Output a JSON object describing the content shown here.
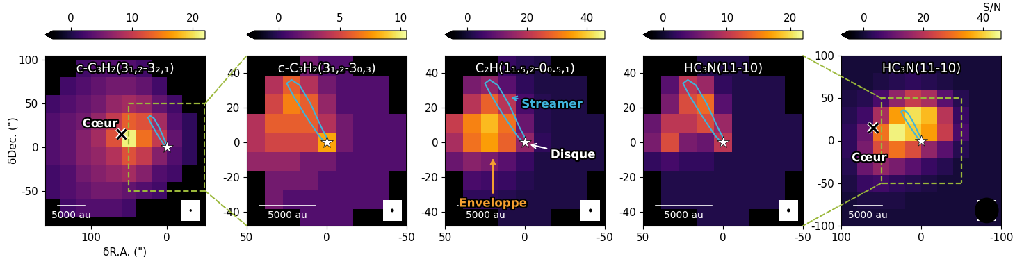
{
  "chart_data": [
    {
      "type": "heatmap",
      "title": "c-C₃H₂(3₁,₂-3₂,₁)",
      "xlabel": "δR.A. (\")",
      "ylabel": "δDec. (\")",
      "xlim": [
        160,
        -50
      ],
      "ylim": [
        -90,
        105
      ],
      "xticks": [
        100,
        0
      ],
      "yticks": [
        -50,
        0,
        50,
        100
      ],
      "x": [
        150,
        130,
        110,
        90,
        70,
        50,
        30,
        10,
        -10,
        -30
      ],
      "y": [
        90,
        70,
        50,
        30,
        10,
        -10,
        -30,
        -50,
        -70
      ],
      "cells": [
        [
          null,
          null,
          2,
          3,
          3,
          3,
          2,
          null,
          null,
          null
        ],
        [
          null,
          2,
          3,
          4,
          5,
          5,
          4,
          2,
          null,
          null
        ],
        [
          2,
          3,
          4,
          5,
          7,
          8,
          7,
          4,
          2,
          null
        ],
        [
          3,
          4,
          5,
          7,
          10,
          13,
          12,
          8,
          3,
          1
        ],
        [
          3,
          4,
          6,
          8,
          12,
          21,
          14,
          10,
          4,
          1
        ],
        [
          3,
          4,
          6,
          7,
          9,
          12,
          10,
          6,
          3,
          1
        ],
        [
          2,
          3,
          5,
          6,
          7,
          8,
          6,
          3,
          2,
          null
        ],
        [
          2,
          3,
          4,
          5,
          5,
          4,
          3,
          2,
          null,
          null
        ],
        [
          null,
          2,
          3,
          3,
          3,
          2,
          null,
          null,
          null,
          null
        ]
      ],
      "colorbar": {
        "range": [
          -3,
          22
        ],
        "ticks": [
          0,
          10,
          20
        ]
      },
      "star": [
        0,
        0
      ],
      "cross": [
        60,
        15
      ],
      "streamer": {
        "x": [
          1,
          5,
          13,
          21,
          25,
          22,
          17,
          10,
          3,
          -1,
          1
        ],
        "y": [
          0,
          4,
          15,
          27,
          34,
          36,
          33,
          22,
          8,
          1,
          0
        ],
        "color": "#3fb4dc"
      },
      "zoom_box": {
        "x": [
          50,
          -50
        ],
        "y": [
          -50,
          50
        ]
      },
      "scalebar": {
        "label": "5000 au",
        "length": 35
      },
      "beam": 3,
      "annotations": [
        {
          "text": "Cœur",
          "x": 88,
          "y": 27,
          "color": "#ffffff"
        }
      ]
    },
    {
      "type": "heatmap",
      "title": "c-C₃H₂(3₁,₂-3₀,₃)",
      "xlim": [
        50,
        -50
      ],
      "ylim": [
        -48,
        50
      ],
      "xticks": [
        50,
        0,
        -50
      ],
      "yticks": [
        -40,
        -20,
        0,
        20,
        40
      ],
      "x": [
        44,
        33,
        22,
        11,
        0,
        -11,
        -22,
        -33,
        -44
      ],
      "y": [
        44,
        33,
        22,
        11,
        0,
        -11,
        -22,
        -33,
        -44
      ],
      "cells": [
        [
          null,
          null,
          null,
          2,
          1,
          1,
          null,
          null,
          null
        ],
        [
          null,
          4,
          6,
          4,
          2,
          1,
          1,
          1,
          null
        ],
        [
          null,
          5,
          7,
          6,
          3,
          1,
          1,
          1,
          null
        ],
        [
          4,
          6,
          6,
          6,
          4,
          2,
          1,
          1,
          1
        ],
        [
          4,
          5,
          5,
          5,
          8,
          2,
          1,
          1,
          1
        ],
        [
          3,
          3,
          3,
          2,
          2,
          1,
          1,
          1,
          1
        ],
        [
          null,
          2,
          2,
          2,
          1,
          1,
          1,
          1,
          null
        ],
        [
          null,
          2,
          1,
          1,
          1,
          1,
          1,
          1,
          null
        ],
        [
          null,
          null,
          null,
          1,
          1,
          1,
          null,
          null,
          null
        ]
      ],
      "colorbar": {
        "range": [
          -2,
          10.5
        ],
        "ticks": [
          0,
          5,
          10
        ]
      },
      "star": [
        0,
        0
      ],
      "streamer": {
        "x": [
          1,
          5,
          13,
          21,
          25,
          22,
          17,
          10,
          3,
          -1,
          1
        ],
        "y": [
          0,
          4,
          15,
          27,
          34,
          36,
          33,
          22,
          8,
          1,
          0
        ],
        "color": "#3fb4dc"
      },
      "scalebar": {
        "label": "5000 au",
        "length": 35
      },
      "beam": 2
    },
    {
      "type": "heatmap",
      "title": "C₂H(1₁.₅,₂-0₀.₅,₁)",
      "xlim": [
        50,
        -50
      ],
      "ylim": [
        -48,
        50
      ],
      "xticks": [
        50,
        0,
        -50
      ],
      "yticks": [
        -40,
        -20,
        0,
        20,
        40
      ],
      "x": [
        44,
        33,
        22,
        11,
        0,
        -11,
        -22,
        -33,
        -44
      ],
      "y": [
        44,
        33,
        22,
        11,
        0,
        -11,
        -22,
        -33,
        -44
      ],
      "cells": [
        [
          null,
          null,
          null,
          4,
          2,
          1,
          null,
          null,
          null
        ],
        [
          null,
          12,
          15,
          8,
          3,
          1,
          1,
          1,
          null
        ],
        [
          null,
          20,
          28,
          20,
          6,
          2,
          1,
          1,
          null
        ],
        [
          22,
          32,
          38,
          30,
          10,
          2,
          1,
          1,
          1
        ],
        [
          18,
          30,
          35,
          28,
          15,
          3,
          1,
          1,
          1
        ],
        [
          10,
          14,
          12,
          8,
          4,
          1,
          1,
          1,
          1
        ],
        [
          null,
          6,
          5,
          4,
          2,
          1,
          1,
          1,
          null
        ],
        [
          null,
          3,
          3,
          2,
          1,
          1,
          1,
          1,
          null
        ],
        [
          null,
          null,
          null,
          1,
          1,
          1,
          null,
          null,
          null
        ]
      ],
      "colorbar": {
        "range": [
          -5,
          46
        ],
        "ticks": [
          0,
          20,
          40
        ]
      },
      "star": [
        0,
        0
      ],
      "streamer": {
        "x": [
          1,
          5,
          13,
          21,
          25,
          22,
          17,
          10,
          3,
          -1,
          1
        ],
        "y": [
          0,
          4,
          15,
          27,
          34,
          36,
          33,
          22,
          8,
          1,
          0
        ],
        "color": "#3fb4dc"
      },
      "scalebar": {
        "label": "5000 au",
        "length": 35
      },
      "beam": 2,
      "annotations": [
        {
          "text": "Streamer",
          "x": -17,
          "y": 22,
          "arrow_x": 10,
          "arrow_y": 26,
          "color": "#3fb4dc"
        },
        {
          "text": "Enveloppe",
          "x": 20,
          "y": -35,
          "arrow_x": 20,
          "arrow_y": -8,
          "color": "#f5a030"
        },
        {
          "text": "Disque",
          "x": -30,
          "y": -7,
          "arrow_x": -2,
          "arrow_y": -1,
          "color": "#ffffff"
        }
      ]
    },
    {
      "type": "heatmap",
      "title": "HC₃N(11-10)",
      "xlim": [
        50,
        -50
      ],
      "ylim": [
        -48,
        50
      ],
      "xticks": [
        50,
        0,
        -50
      ],
      "yticks": [
        -40,
        -20,
        0,
        20,
        40
      ],
      "x": [
        44,
        33,
        22,
        11,
        0,
        -11,
        -22,
        -33,
        -44
      ],
      "y": [
        44,
        33,
        22,
        11,
        0,
        -11,
        -22,
        -33,
        -44
      ],
      "cells": [
        [
          null,
          null,
          null,
          1,
          1,
          1,
          null,
          null,
          null
        ],
        [
          null,
          4,
          10,
          8,
          2,
          1,
          1,
          1,
          null
        ],
        [
          null,
          6,
          12,
          14,
          4,
          1,
          1,
          1,
          null
        ],
        [
          5,
          10,
          10,
          12,
          8,
          1,
          1,
          1,
          1
        ],
        [
          6,
          12,
          6,
          5,
          10,
          1,
          1,
          1,
          1
        ],
        [
          2,
          3,
          2,
          2,
          1,
          1,
          1,
          1,
          1
        ],
        [
          null,
          1,
          1,
          1,
          1,
          1,
          1,
          1,
          null
        ],
        [
          null,
          1,
          1,
          1,
          1,
          1,
          1,
          1,
          null
        ],
        [
          null,
          null,
          null,
          1,
          1,
          1,
          null,
          null,
          null
        ]
      ],
      "colorbar": {
        "range": [
          -2,
          22
        ],
        "ticks": [
          0,
          10,
          20
        ]
      },
      "star": [
        0,
        0
      ],
      "streamer": {
        "x": [
          1,
          5,
          13,
          21,
          25,
          22,
          17,
          10,
          3,
          -1,
          1
        ],
        "y": [
          0,
          4,
          15,
          27,
          34,
          36,
          33,
          22,
          8,
          1,
          0
        ],
        "color": "#3fb4dc"
      },
      "scalebar": {
        "label": "5000 au",
        "length": 35
      },
      "beam": 2
    },
    {
      "type": "heatmap",
      "title": "HC₃N(11-10)",
      "xlim": [
        100,
        -100
      ],
      "ylim": [
        -100,
        100
      ],
      "xticks": [
        100,
        0,
        -100
      ],
      "yticks": [
        -100,
        -50,
        0,
        50,
        100
      ],
      "x": [
        90,
        70,
        50,
        30,
        10,
        -10,
        -30,
        -50,
        -70,
        -90
      ],
      "y": [
        90,
        70,
        50,
        30,
        10,
        -10,
        -30,
        -50,
        -70,
        -90
      ],
      "cells": [
        [
          0,
          0,
          0,
          0,
          0,
          0,
          0,
          0,
          0,
          0
        ],
        [
          0,
          0,
          1,
          2,
          3,
          2,
          1,
          0,
          0,
          0
        ],
        [
          1,
          2,
          6,
          15,
          22,
          18,
          8,
          2,
          0,
          0
        ],
        [
          2,
          5,
          18,
          35,
          42,
          38,
          20,
          4,
          0,
          0
        ],
        [
          3,
          10,
          30,
          44,
          40,
          35,
          22,
          6,
          0,
          0
        ],
        [
          3,
          12,
          25,
          30,
          25,
          15,
          8,
          2,
          0,
          0
        ],
        [
          2,
          10,
          15,
          12,
          8,
          4,
          2,
          0,
          0,
          0
        ],
        [
          1,
          4,
          5,
          3,
          2,
          1,
          0,
          0,
          0,
          0
        ],
        [
          0,
          1,
          1,
          1,
          0,
          0,
          0,
          0,
          0,
          0
        ],
        [
          0,
          0,
          0,
          0,
          0,
          0,
          0,
          0,
          0,
          0
        ]
      ],
      "colorbar": {
        "range": [
          -5,
          46
        ],
        "ticks": [
          0,
          20,
          40
        ],
        "label": "S/N"
      },
      "star": [
        0,
        0
      ],
      "cross": [
        60,
        15
      ],
      "streamer": {
        "x": [
          1,
          5,
          13,
          21,
          25,
          22,
          17,
          10,
          3,
          -1,
          1
        ],
        "y": [
          0,
          4,
          15,
          27,
          34,
          36,
          33,
          22,
          8,
          1,
          0
        ],
        "color": "#3fb4dc"
      },
      "zoom_box": {
        "x": [
          50,
          -50
        ],
        "y": [
          -50,
          50
        ]
      },
      "scalebar": {
        "label": "5000 au",
        "length": 35
      },
      "beam": 30,
      "annotations": [
        {
          "text": "Cœur",
          "x": 65,
          "y": -20,
          "color": "#ffffff"
        }
      ]
    }
  ]
}
